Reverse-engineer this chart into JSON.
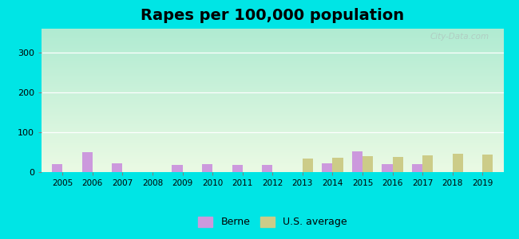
{
  "title": "Rapes per 100,000 population",
  "years": [
    2005,
    2006,
    2007,
    2008,
    2009,
    2010,
    2011,
    2012,
    2013,
    2014,
    2015,
    2016,
    2017,
    2018,
    2019
  ],
  "berne": [
    20,
    50,
    22,
    0,
    18,
    20,
    18,
    18,
    0,
    22,
    52,
    20,
    20,
    0,
    0
  ],
  "us_avg": [
    0,
    0,
    0,
    0,
    0,
    0,
    0,
    0,
    35,
    37,
    40,
    38,
    42,
    47,
    45
  ],
  "berne_color": "#cc99dd",
  "us_avg_color": "#cccc88",
  "bar_width": 0.35,
  "ylim": [
    0,
    360
  ],
  "yticks": [
    0,
    100,
    200,
    300
  ],
  "background_top": "#b8edd8",
  "background_bottom": "#e8f8e0",
  "outer_bg": "#00e5e5",
  "title_fontsize": 14,
  "legend_labels": [
    "Berne",
    "U.S. average"
  ],
  "watermark": "City-Data.com"
}
